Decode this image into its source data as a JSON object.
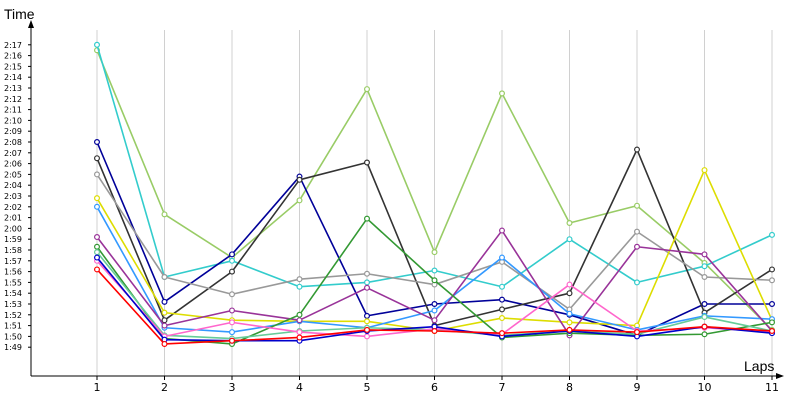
{
  "chart_data": {
    "type": "line",
    "xlabel": "Laps",
    "ylabel": "Time",
    "x": [
      1,
      2,
      3,
      4,
      5,
      6,
      7,
      8,
      9,
      10,
      11
    ],
    "y_ticks": [
      "1:49",
      "1:50",
      "1:51",
      "1:52",
      "1:53",
      "1:54",
      "1:55",
      "1:56",
      "1:57",
      "1:58",
      "1:59",
      "2:00",
      "2:01",
      "2:02",
      "2:03",
      "2:04",
      "2:05",
      "2:06",
      "2:07",
      "2:08",
      "2:09",
      "2:10",
      "2:11",
      "2:12",
      "2:13",
      "2:14",
      "2:15",
      "2:16",
      "2:17"
    ],
    "ylim_seconds": [
      108,
      138
    ],
    "grid": true,
    "series": [
      {
        "color": "#99cc66",
        "values": [
          136.5,
          121.3,
          117.3,
          122.6,
          132.9,
          117.8,
          132.5,
          120.5,
          122.1,
          116.8,
          110.6
        ]
      },
      {
        "color": "#33cccc",
        "values": [
          137.0,
          115.5,
          117.0,
          114.6,
          115.0,
          116.1,
          114.6,
          119.0,
          115.0,
          116.5,
          119.4
        ]
      },
      {
        "color": "#000099",
        "values": [
          128.0,
          113.2,
          117.6,
          124.8,
          111.9,
          113.0,
          113.4,
          112.0,
          110.1,
          113.0,
          113.0
        ]
      },
      {
        "color": "#333333",
        "values": [
          126.5,
          111.5,
          116.0,
          124.5,
          126.1,
          111.0,
          112.5,
          114.0,
          127.3,
          112.2,
          116.2
        ]
      },
      {
        "color": "#999999",
        "values": [
          125.0,
          115.5,
          113.9,
          115.3,
          115.8,
          114.8,
          116.9,
          112.5,
          119.7,
          115.5,
          115.2
        ]
      },
      {
        "color": "#dddd00",
        "values": [
          122.8,
          112.2,
          111.5,
          111.4,
          111.4,
          110.5,
          111.7,
          111.3,
          111.0,
          125.4,
          111.5
        ]
      },
      {
        "color": "#3399ff",
        "values": [
          122.0,
          110.8,
          110.4,
          111.4,
          110.8,
          112.4,
          117.3,
          112.1,
          110.6,
          111.9,
          111.6
        ]
      },
      {
        "color": "#993399",
        "values": [
          119.2,
          111.0,
          112.4,
          111.5,
          114.5,
          111.5,
          119.8,
          110.1,
          118.3,
          117.6,
          110.5
        ]
      },
      {
        "color": "#339933",
        "values": [
          118.3,
          109.8,
          109.3,
          112.0,
          120.9,
          115.2,
          109.9,
          110.3,
          110.1,
          110.2,
          111.3
        ]
      },
      {
        "color": "#66cc99",
        "values": [
          117.8,
          110.1,
          109.8,
          110.5,
          110.8,
          110.6,
          110.1,
          110.5,
          110.2,
          111.8,
          110.5
        ]
      },
      {
        "color": "#ff66cc",
        "values": [
          117.0,
          110.0,
          111.3,
          110.4,
          110.0,
          110.7,
          110.2,
          114.8,
          110.5,
          110.8,
          110.4
        ]
      },
      {
        "color": "#0000cc",
        "values": [
          117.3,
          109.7,
          109.6,
          109.6,
          110.5,
          110.9,
          110.0,
          110.5,
          110.0,
          110.9,
          110.3
        ]
      },
      {
        "color": "#ff0000",
        "values": [
          116.2,
          109.3,
          109.6,
          109.9,
          110.6,
          110.5,
          110.3,
          110.6,
          110.4,
          110.9,
          110.5
        ]
      }
    ]
  }
}
